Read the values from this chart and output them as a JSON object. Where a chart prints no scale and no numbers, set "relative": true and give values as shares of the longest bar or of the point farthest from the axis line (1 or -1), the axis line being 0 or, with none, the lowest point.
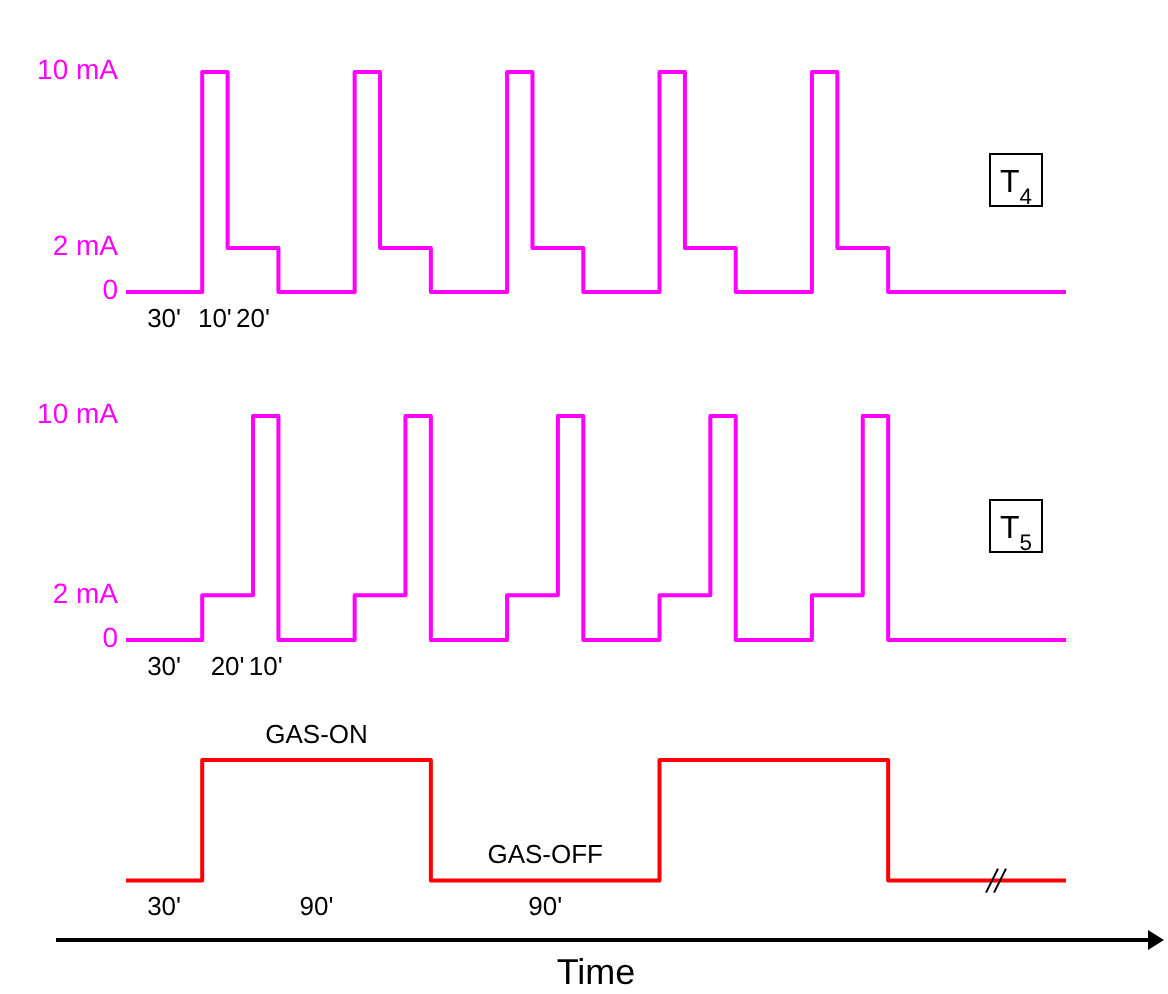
{
  "chart_data": [
    {
      "type": "step",
      "categories": [
        null,
        null,
        null,
        null,
        null,
        null,
        null,
        null,
        null,
        null,
        null,
        null,
        null,
        null,
        null,
        null,
        null,
        null,
        null,
        null,
        null,
        null,
        null,
        null,
        null,
        null,
        null,
        null,
        null,
        null,
        null,
        null,
        null,
        null,
        null,
        null,
        null,
        null
      ],
      "ylim": [
        0,
        10
      ],
      "yticks": [
        {
          "value": 0,
          "label": "0"
        },
        {
          "value": 2,
          "label": "2 mA"
        },
        {
          "value": 10,
          "label": "10 mA"
        }
      ],
      "tick_labels": "y",
      "series": [
        {
          "name": "T$_{4}$",
          "color": "#ff00ff",
          "values": [
            0,
            0,
            0,
            10,
            2,
            2,
            0,
            0,
            0,
            10,
            2,
            2,
            0,
            0,
            0,
            10,
            2,
            2,
            0,
            0,
            0,
            10,
            2,
            2,
            0,
            0,
            0,
            10,
            2,
            2,
            0,
            0,
            0,
            0,
            0,
            0,
            0,
            0
          ]
        }
      ],
      "annotations": [
        "30'",
        "10'",
        "20'"
      ]
    },
    {
      "type": "step",
      "categories": [
        null,
        null,
        null,
        null,
        null,
        null,
        null,
        null,
        null,
        null,
        null,
        null,
        null,
        null,
        null,
        null,
        null,
        null,
        null,
        null,
        null,
        null,
        null,
        null,
        null,
        null,
        null,
        null,
        null,
        null,
        null,
        null,
        null,
        null,
        null,
        null,
        null,
        null
      ],
      "ylim": [
        0,
        10
      ],
      "yticks": [
        {
          "value": 0,
          "label": "0"
        },
        {
          "value": 2,
          "label": "2 mA"
        },
        {
          "value": 10,
          "label": "10 mA"
        }
      ],
      "tick_labels": "y",
      "series": [
        {
          "name": "T$_{5}$",
          "color": "#ff00ff",
          "values": [
            0,
            0,
            0,
            2,
            2,
            10,
            0,
            0,
            0,
            2,
            2,
            10,
            0,
            0,
            0,
            2,
            2,
            10,
            0,
            0,
            0,
            2,
            2,
            10,
            0,
            0,
            0,
            2,
            2,
            10,
            0,
            0,
            0,
            0,
            0,
            0,
            0,
            0
          ]
        }
      ],
      "annotations": [
        "30'",
        "20'",
        "10'"
      ]
    },
    {
      "type": "step",
      "relative": true,
      "categories": [
        null,
        null,
        null,
        null,
        null,
        null,
        null,
        null,
        null,
        null,
        null,
        null,
        null,
        null,
        null,
        null,
        null,
        null,
        null,
        null,
        null,
        null,
        null,
        null,
        null,
        null,
        null,
        null,
        null,
        null,
        null,
        null,
        null,
        null,
        null,
        null,
        null,
        null
      ],
      "xlabel": "Time",
      "series": [
        {
          "color": "#ff0000",
          "values": [
            0.33,
            0.33,
            0.33,
            1,
            1,
            1,
            1,
            1,
            1,
            1,
            1,
            1,
            0.33,
            0.33,
            0.33,
            0.33,
            0.33,
            0.33,
            0.33,
            0.33,
            0.33,
            1,
            1,
            1,
            1,
            1,
            1,
            1,
            1,
            1,
            0.33,
            0.33,
            0.33,
            0.33,
            0.33,
            0.33,
            0.33,
            0.33
          ]
        }
      ],
      "annotations": [
        "30'",
        "90'",
        "90'",
        "GAS-ON",
        "GAS-OFF"
      ]
    }
  ]
}
